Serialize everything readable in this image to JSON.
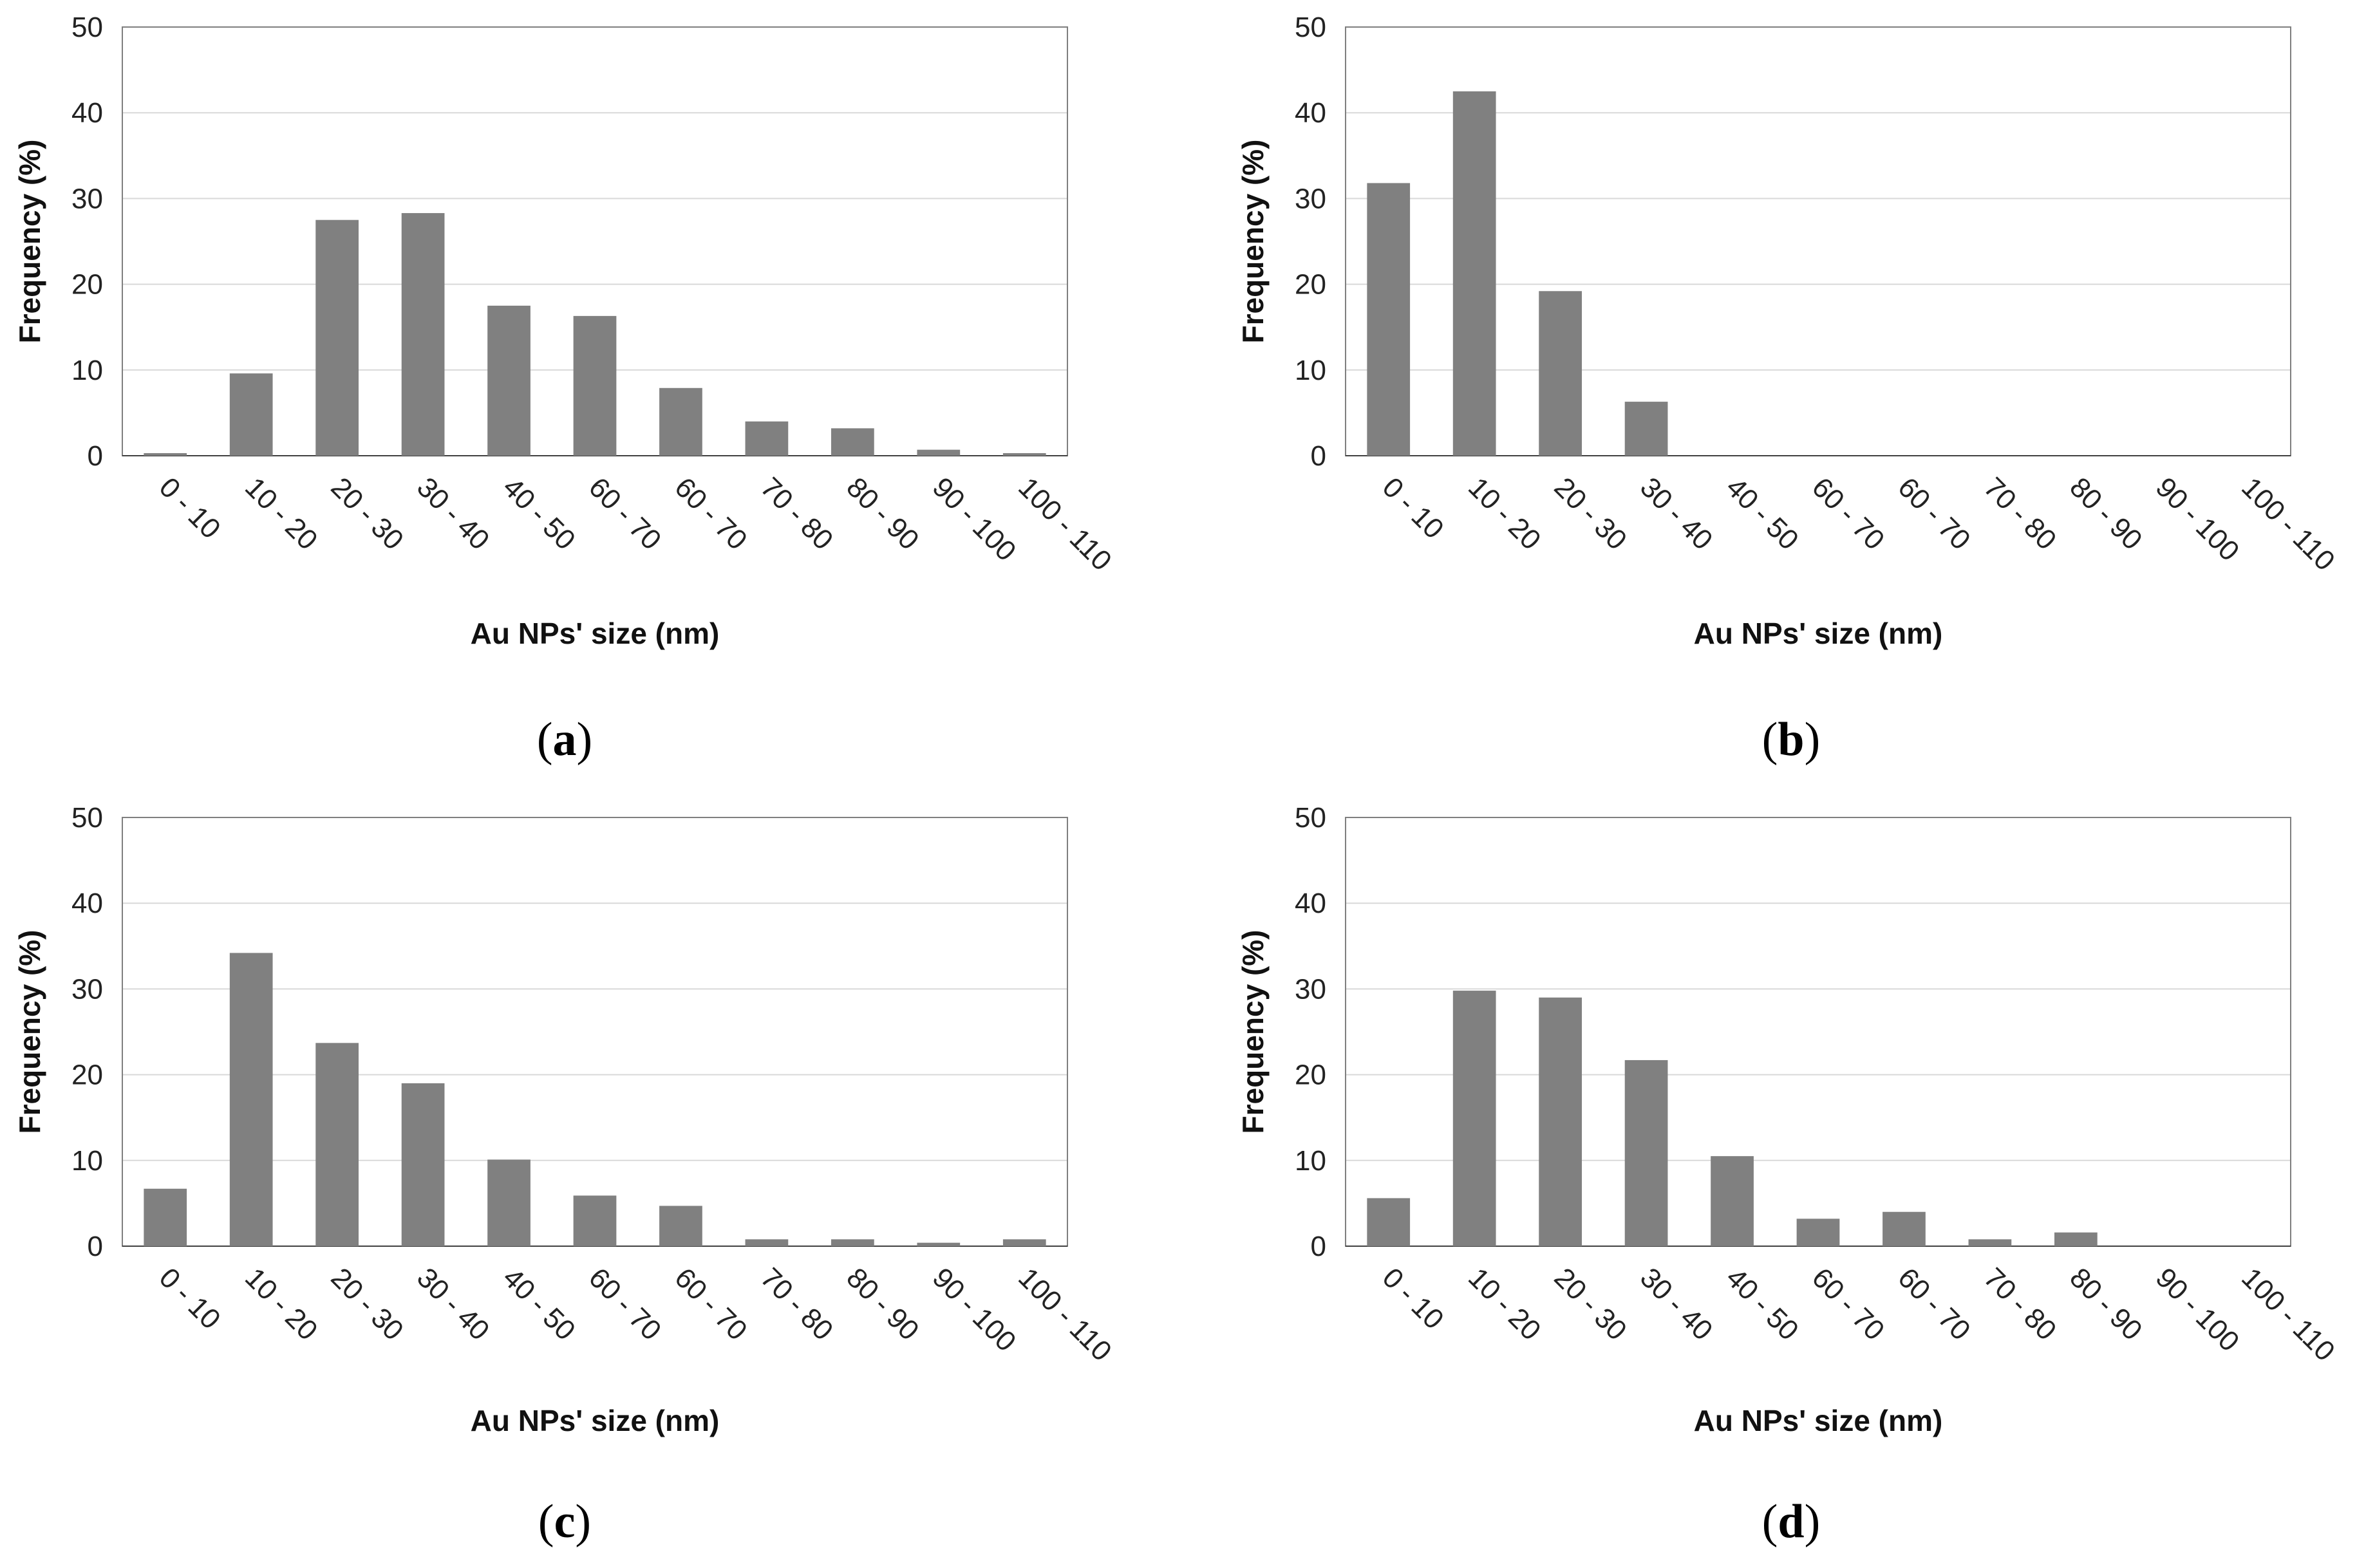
{
  "colors": {
    "bar": "#808080",
    "grid": "#d9d9d9",
    "axis": "#404040"
  },
  "chart_data": [
    {
      "type": "bar",
      "caption": "a",
      "title": "",
      "xlabel": "Au NPs' size (nm)",
      "ylabel": "Frequency (%)",
      "ylim": [
        0,
        50
      ],
      "yticks": [
        "0",
        "10",
        "20",
        "30",
        "40",
        "50"
      ],
      "grid": true,
      "categories": [
        "0 - 10",
        "10 - 20",
        "20 - 30",
        "30 - 40",
        "40 - 50",
        "60 - 70",
        "60 - 70",
        "70 - 80",
        "80 - 90",
        "90 - 100",
        "100 - 110"
      ],
      "values": [
        0.3,
        9.6,
        27.5,
        28.3,
        17.5,
        16.3,
        7.9,
        4.0,
        3.2,
        0.7,
        0.3
      ]
    },
    {
      "type": "bar",
      "caption": "b",
      "title": "",
      "xlabel": "Au NPs' size (nm)",
      "ylabel": "Frequency (%)",
      "ylim": [
        0,
        50
      ],
      "yticks": [
        "0",
        "10",
        "20",
        "30",
        "40",
        "50"
      ],
      "grid": true,
      "categories": [
        "0 - 10",
        "10 - 20",
        "20 - 30",
        "30 - 40",
        "40 - 50",
        "60 - 70",
        "60 - 70",
        "70 - 80",
        "80 - 90",
        "90 - 100",
        "100 - 110"
      ],
      "values": [
        31.8,
        42.5,
        19.2,
        6.3,
        0,
        0,
        0,
        0,
        0,
        0,
        0
      ]
    },
    {
      "type": "bar",
      "caption": "c",
      "title": "",
      "xlabel": "Au NPs' size (nm)",
      "ylabel": "Frequency (%)",
      "ylim": [
        0,
        50
      ],
      "yticks": [
        "0",
        "10",
        "20",
        "30",
        "40",
        "50"
      ],
      "grid": true,
      "categories": [
        "0 - 10",
        "10 - 20",
        "20 - 30",
        "30 - 40",
        "40 - 50",
        "60 - 70",
        "60 - 70",
        "70 - 80",
        "80 - 90",
        "90 - 100",
        "100 - 110"
      ],
      "values": [
        6.7,
        34.2,
        23.7,
        19.0,
        10.1,
        5.9,
        4.7,
        0.8,
        0.8,
        0.4,
        0.8
      ]
    },
    {
      "type": "bar",
      "caption": "d",
      "title": "",
      "xlabel": "Au NPs' size (nm)",
      "ylabel": "Frequency (%)",
      "ylim": [
        0,
        50
      ],
      "yticks": [
        "0",
        "10",
        "20",
        "30",
        "40",
        "50"
      ],
      "grid": true,
      "categories": [
        "0 - 10",
        "10 - 20",
        "20 - 30",
        "30 - 40",
        "40 - 50",
        "60 - 70",
        "60 - 70",
        "70 - 80",
        "80 - 90",
        "90 - 100",
        "100 - 110"
      ],
      "values": [
        5.6,
        29.8,
        29.0,
        21.7,
        10.5,
        3.2,
        4.0,
        0.8,
        1.6,
        0,
        0
      ]
    }
  ]
}
